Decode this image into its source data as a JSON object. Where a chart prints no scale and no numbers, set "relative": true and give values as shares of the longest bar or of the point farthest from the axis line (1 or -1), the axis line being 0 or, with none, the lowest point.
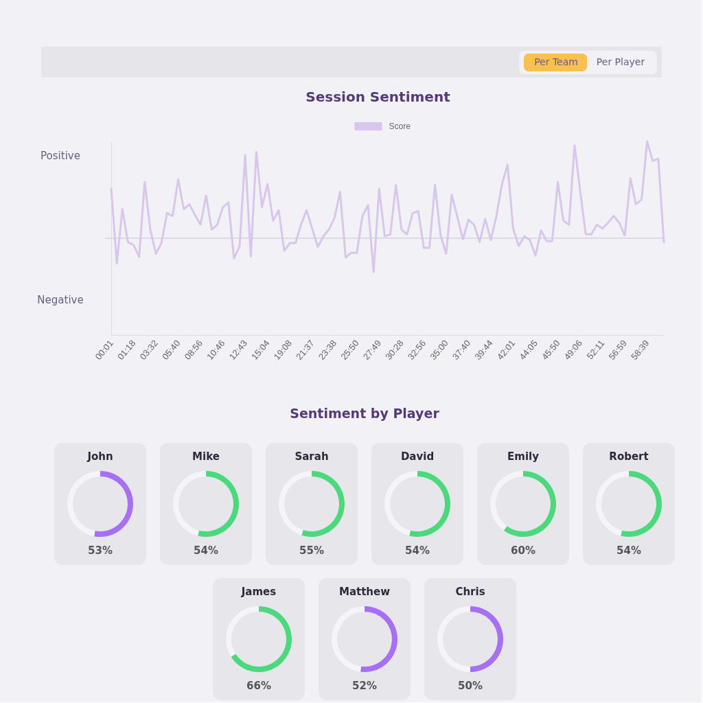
{
  "chart_data": [
    {
      "type": "other",
      "annotations": [
        "Per Team",
        "Per Player"
      ]
    },
    {
      "type": "line",
      "title": "Session Sentiment",
      "relative": true,
      "legend": "top",
      "categories": [
        "00:01",
        null,
        null,
        null,
        "01:18",
        null,
        null,
        null,
        "03:32",
        null,
        null,
        null,
        "05:40",
        null,
        null,
        null,
        "08:56",
        null,
        null,
        null,
        "10:46",
        null,
        null,
        null,
        "12:43",
        null,
        null,
        null,
        "15:04",
        null,
        null,
        null,
        "19:08",
        null,
        null,
        null,
        "21:37",
        null,
        null,
        null,
        "23:38",
        null,
        null,
        null,
        "25:50",
        null,
        null,
        null,
        "27:49",
        null,
        null,
        null,
        "30:28",
        null,
        null,
        null,
        "32:56",
        null,
        null,
        null,
        "35:00",
        null,
        null,
        null,
        "37:40",
        null,
        null,
        null,
        "39:44",
        null,
        null,
        null,
        "42:01",
        null,
        null,
        null,
        "44:05",
        null,
        null,
        null,
        "45:50",
        null,
        null,
        null,
        "49:06",
        null,
        null,
        null,
        "52:11",
        null,
        null,
        null,
        "56:59",
        null,
        null,
        null,
        "58:39",
        null,
        null,
        null
      ],
      "series": [
        {
          "name": "Score",
          "color": "#d8c6ec",
          "values": [
            0.51,
            -0.26,
            0.3,
            -0.04,
            -0.07,
            -0.19,
            0.58,
            0.09,
            -0.16,
            -0.05,
            0.26,
            0.23,
            0.61,
            0.3,
            0.35,
            0.24,
            0.14,
            0.44,
            0.09,
            0.14,
            0.32,
            0.37,
            -0.21,
            -0.08,
            0.86,
            -0.19,
            0.89,
            0.32,
            0.56,
            0.18,
            0.29,
            -0.13,
            -0.05,
            -0.05,
            0.14,
            0.29,
            0.1,
            -0.09,
            0.02,
            0.09,
            0.21,
            0.48,
            -0.2,
            -0.15,
            -0.15,
            0.23,
            0.34,
            -0.35,
            0.51,
            0.02,
            0.04,
            0.55,
            0.09,
            0.04,
            0.26,
            0.28,
            -0.1,
            -0.1,
            0.55,
            0.03,
            -0.16,
            0.45,
            0.22,
            -0.01,
            0.19,
            0.14,
            -0.04,
            0.2,
            -0.02,
            0.23,
            0.56,
            0.76,
            0.1,
            -0.08,
            0.02,
            -0.02,
            -0.18,
            0.08,
            -0.03,
            -0.03,
            0.58,
            0.18,
            0.14,
            0.96,
            0.49,
            0.04,
            0.04,
            0.14,
            0.1,
            0.16,
            0.23,
            0.16,
            0.03,
            0.62,
            0.35,
            0.4,
            1,
            0.8,
            0.82,
            -0.04
          ]
        }
      ],
      "annotations": [
        "Positive",
        "Negative"
      ],
      "ref_lines": [
        {
          "axis": "y",
          "value": 0,
          "color": "#c8c4ce"
        }
      ]
    },
    {
      "type": "other",
      "title": "Sentiment by Player"
    },
    {
      "type": "donut",
      "title": "John",
      "categories": [
        null,
        null
      ],
      "values": [
        53,
        47
      ],
      "colors": [
        "#a66ff5",
        "#f5f4f8"
      ],
      "value_labels": [
        "53%",
        null
      ]
    },
    {
      "type": "donut",
      "title": "Mike",
      "categories": [
        null,
        null
      ],
      "values": [
        54,
        46
      ],
      "colors": [
        "#4cd97e",
        "#f5f4f8"
      ],
      "value_labels": [
        "54%",
        null
      ]
    },
    {
      "type": "donut",
      "title": "Sarah",
      "categories": [
        null,
        null
      ],
      "values": [
        55,
        45
      ],
      "colors": [
        "#4cd97e",
        "#f5f4f8"
      ],
      "value_labels": [
        "55%",
        null
      ]
    },
    {
      "type": "donut",
      "title": "David",
      "categories": [
        null,
        null
      ],
      "values": [
        54,
        46
      ],
      "colors": [
        "#4cd97e",
        "#f5f4f8"
      ],
      "value_labels": [
        "54%",
        null
      ]
    },
    {
      "type": "donut",
      "title": "Emily",
      "categories": [
        null,
        null
      ],
      "values": [
        60,
        40
      ],
      "colors": [
        "#4cd97e",
        "#f5f4f8"
      ],
      "value_labels": [
        "60%",
        null
      ]
    },
    {
      "type": "donut",
      "title": "Robert",
      "categories": [
        null,
        null
      ],
      "values": [
        54,
        46
      ],
      "colors": [
        "#4cd97e",
        "#f5f4f8"
      ],
      "value_labels": [
        "54%",
        null
      ]
    },
    {
      "type": "donut",
      "title": "James",
      "categories": [
        null,
        null
      ],
      "values": [
        66,
        34
      ],
      "colors": [
        "#4cd97e",
        "#f5f4f8"
      ],
      "value_labels": [
        "66%",
        null
      ]
    },
    {
      "type": "donut",
      "title": "Matthew",
      "categories": [
        null,
        null
      ],
      "values": [
        52,
        48
      ],
      "colors": [
        "#a66ff5",
        "#f5f4f8"
      ],
      "value_labels": [
        "52%",
        null
      ]
    },
    {
      "type": "donut",
      "title": "Chris",
      "categories": [
        null,
        null
      ],
      "values": [
        50,
        50
      ],
      "colors": [
        "#a66ff5",
        "#f5f4f8"
      ],
      "value_labels": [
        "50%",
        null
      ]
    }
  ]
}
